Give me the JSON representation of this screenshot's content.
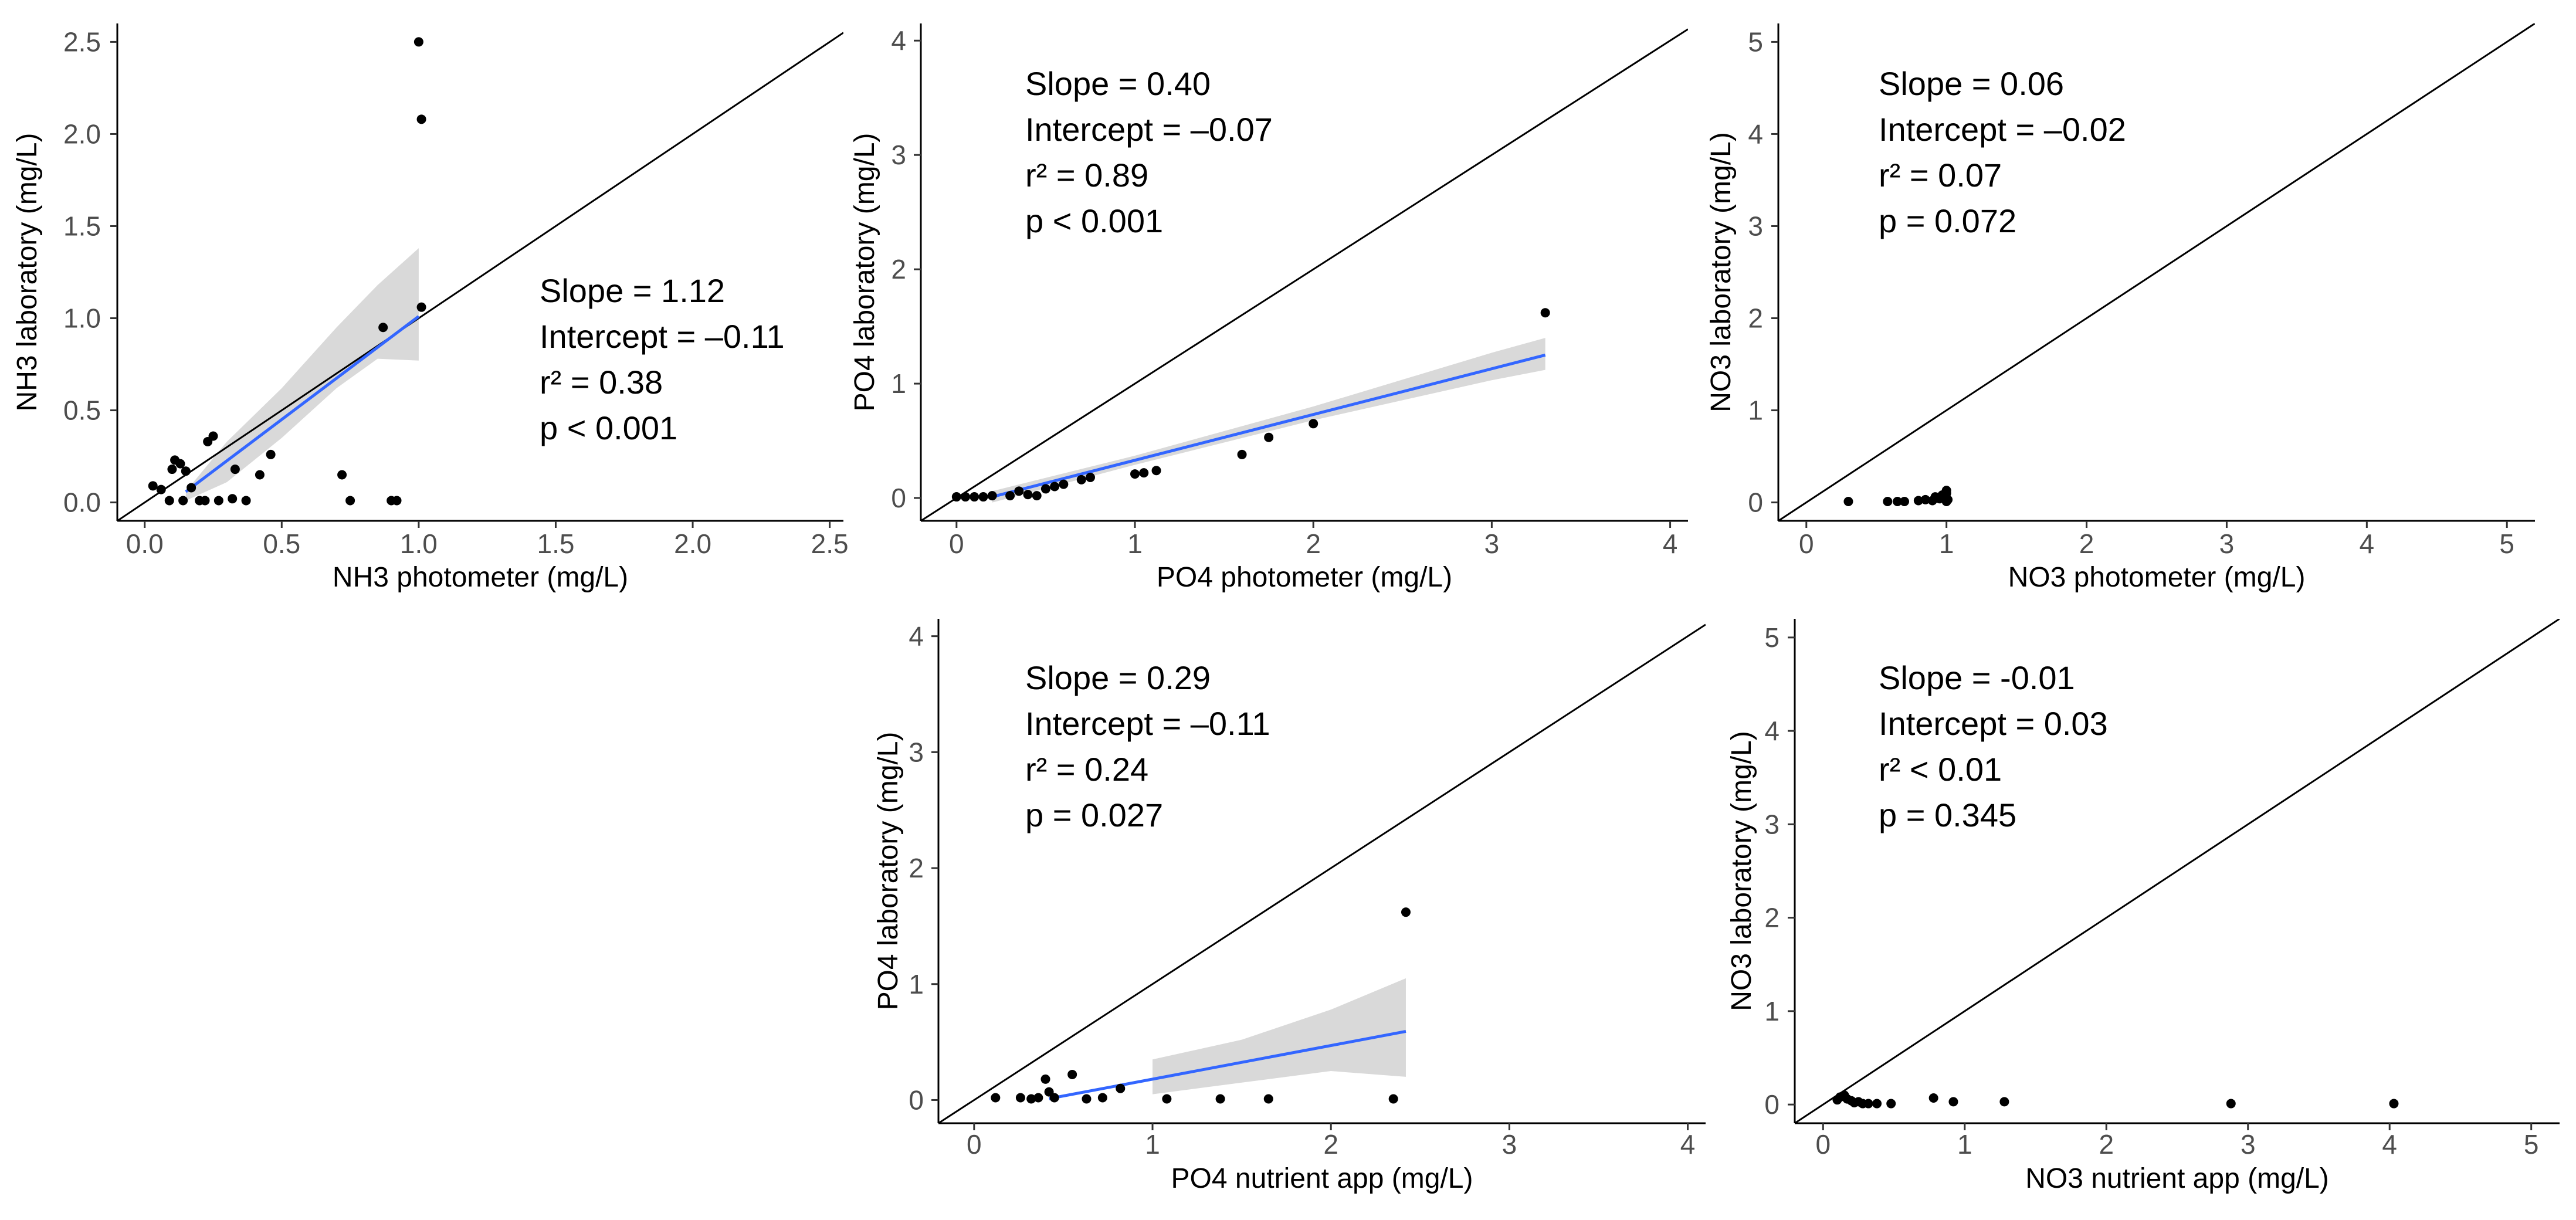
{
  "chart_data": [
    {
      "id": "p1",
      "type": "scatter",
      "xlabel": "NH3 photometer (mg/L)",
      "ylabel": "NH3 laboratory (mg/L)",
      "xlim": [
        -0.1,
        2.55
      ],
      "ylim": [
        -0.1,
        2.6
      ],
      "xticks": [
        0,
        0.5,
        1,
        1.5,
        2,
        2.5
      ],
      "xtick_labels": [
        "0.0",
        "0.5",
        "1.0",
        "1.5",
        "2.0",
        "2.5"
      ],
      "yticks": [
        0,
        0.5,
        1,
        1.5,
        2,
        2.5
      ],
      "ytick_labels": [
        "0.0",
        "0.5",
        "1.0",
        "1.5",
        "2.0",
        "2.5"
      ],
      "points": [
        [
          0.03,
          0.09
        ],
        [
          0.06,
          0.07
        ],
        [
          0.09,
          0.01
        ],
        [
          0.1,
          0.18
        ],
        [
          0.11,
          0.23
        ],
        [
          0.13,
          0.21
        ],
        [
          0.14,
          0.01
        ],
        [
          0.15,
          0.17
        ],
        [
          0.17,
          0.08
        ],
        [
          0.2,
          0.01
        ],
        [
          0.22,
          0.01
        ],
        [
          0.23,
          0.33
        ],
        [
          0.25,
          0.36
        ],
        [
          0.27,
          0.01
        ],
        [
          0.32,
          0.02
        ],
        [
          0.33,
          0.18
        ],
        [
          0.37,
          0.01
        ],
        [
          0.42,
          0.15
        ],
        [
          0.46,
          0.26
        ],
        [
          0.72,
          0.15
        ],
        [
          0.75,
          0.01
        ],
        [
          0.87,
          0.95
        ],
        [
          0.9,
          0.01
        ],
        [
          0.92,
          0.01
        ],
        [
          1.0,
          2.5
        ],
        [
          1.01,
          2.08
        ],
        [
          1.01,
          1.06
        ]
      ],
      "fit": {
        "x": [
          0.15,
          1.0
        ],
        "slope": 1.12,
        "intercept": -0.11
      },
      "ci": [
        [
          0.15,
          0.06,
          0.01
        ],
        [
          0.3,
          0.33,
          0.11
        ],
        [
          0.5,
          0.62,
          0.35
        ],
        [
          0.7,
          0.95,
          0.62
        ],
        [
          0.85,
          1.18,
          0.78
        ],
        [
          1.0,
          1.38,
          0.77
        ]
      ],
      "stats": [
        "Slope = 1.12",
        "Intercept = –0.11",
        "r² = 0.38",
        "p < 0.001"
      ]
    },
    {
      "id": "p2",
      "type": "scatter",
      "xlabel": "PO4 photometer (mg/L)",
      "ylabel": "PO4 laboratory (mg/L)",
      "xlim": [
        -0.2,
        4.1
      ],
      "ylim": [
        -0.2,
        4.15
      ],
      "xticks": [
        0,
        1,
        2,
        3,
        4
      ],
      "xtick_labels": [
        "0",
        "1",
        "2",
        "3",
        "4"
      ],
      "yticks": [
        0,
        1,
        2,
        3,
        4
      ],
      "ytick_labels": [
        "0",
        "1",
        "2",
        "3",
        "4"
      ],
      "points": [
        [
          0.0,
          0.01
        ],
        [
          0.05,
          0.01
        ],
        [
          0.1,
          0.01
        ],
        [
          0.15,
          0.01
        ],
        [
          0.2,
          0.02
        ],
        [
          0.3,
          0.02
        ],
        [
          0.35,
          0.06
        ],
        [
          0.4,
          0.03
        ],
        [
          0.45,
          0.02
        ],
        [
          0.5,
          0.08
        ],
        [
          0.55,
          0.1
        ],
        [
          0.6,
          0.12
        ],
        [
          0.7,
          0.16
        ],
        [
          0.75,
          0.18
        ],
        [
          1.0,
          0.21
        ],
        [
          1.05,
          0.22
        ],
        [
          1.12,
          0.24
        ],
        [
          1.6,
          0.38
        ],
        [
          1.75,
          0.53
        ],
        [
          2.0,
          0.65
        ],
        [
          3.3,
          1.62
        ]
      ],
      "fit": {
        "x": [
          0.2,
          3.3
        ],
        "slope": 0.4,
        "intercept": -0.07
      },
      "ci": [
        [
          0.2,
          0.06,
          -0.04
        ],
        [
          1.0,
          0.37,
          0.29
        ],
        [
          2.0,
          0.8,
          0.68
        ],
        [
          3.0,
          1.27,
          1.03
        ],
        [
          3.3,
          1.4,
          1.12
        ]
      ],
      "stats": [
        "Slope = 0.40",
        "Intercept = –0.07",
        "r² = 0.89",
        "p < 0.001"
      ]
    },
    {
      "id": "p3",
      "type": "scatter",
      "xlabel": "NO3 photometer (mg/L)",
      "ylabel": "NO3 laboratory (mg/L)",
      "xlim": [
        -0.2,
        5.2
      ],
      "ylim": [
        -0.2,
        5.2
      ],
      "xticks": [
        0,
        1,
        2,
        3,
        4,
        5
      ],
      "xtick_labels": [
        "0",
        "1",
        "2",
        "3",
        "4",
        "5"
      ],
      "yticks": [
        0,
        1,
        2,
        3,
        4,
        5
      ],
      "ytick_labels": [
        "0",
        "1",
        "2",
        "3",
        "4",
        "5"
      ],
      "points": [
        [
          0.3,
          0.01
        ],
        [
          0.58,
          0.01
        ],
        [
          0.65,
          0.01
        ],
        [
          0.7,
          0.01
        ],
        [
          0.8,
          0.02
        ],
        [
          0.85,
          0.03
        ],
        [
          0.9,
          0.02
        ],
        [
          0.92,
          0.06
        ],
        [
          0.95,
          0.04
        ],
        [
          0.97,
          0.08
        ],
        [
          1.0,
          0.01
        ],
        [
          1.0,
          0.05
        ],
        [
          1.0,
          0.1
        ],
        [
          1.0,
          0.13
        ],
        [
          1.01,
          0.03
        ]
      ],
      "fit": null,
      "ci": null,
      "stats": [
        "Slope = 0.06",
        "Intercept  = –0.02",
        "r² = 0.07",
        "p = 0.072"
      ]
    },
    {
      "id": "p4",
      "type": "scatter",
      "xlabel": "PO4 nutrient app (mg/L)",
      "ylabel": "PO4 laboratory (mg/L)",
      "xlim": [
        -0.2,
        4.1
      ],
      "ylim": [
        -0.2,
        4.15
      ],
      "xticks": [
        0,
        1,
        2,
        3,
        4
      ],
      "xtick_labels": [
        "0",
        "1",
        "2",
        "3",
        "4"
      ],
      "yticks": [
        0,
        1,
        2,
        3,
        4
      ],
      "ytick_labels": [
        "0",
        "1",
        "2",
        "3",
        "4"
      ],
      "points": [
        [
          0.12,
          0.02
        ],
        [
          0.26,
          0.02
        ],
        [
          0.32,
          0.01
        ],
        [
          0.36,
          0.02
        ],
        [
          0.4,
          0.18
        ],
        [
          0.42,
          0.07
        ],
        [
          0.45,
          0.02
        ],
        [
          0.55,
          0.22
        ],
        [
          0.63,
          0.01
        ],
        [
          0.72,
          0.02
        ],
        [
          0.82,
          0.1
        ],
        [
          1.08,
          0.01
        ],
        [
          1.38,
          0.01
        ],
        [
          1.65,
          0.01
        ],
        [
          2.35,
          0.01
        ],
        [
          2.42,
          1.62
        ]
      ],
      "fit": {
        "x": [
          0.42,
          2.42
        ],
        "slope": 0.29,
        "intercept": -0.11
      },
      "ci": [
        [
          1.0,
          0.35,
          0.05
        ],
        [
          1.5,
          0.52,
          0.15
        ],
        [
          2.0,
          0.78,
          0.25
        ],
        [
          2.42,
          1.05,
          0.2
        ]
      ],
      "stats": [
        "Slope = 0.29",
        "Intercept = –0.11",
        "r² = 0.24",
        "p = 0.027"
      ]
    },
    {
      "id": "p5",
      "type": "scatter",
      "xlabel": "NO3 nutrient app (mg/L)",
      "ylabel": "NO3 laboratory (mg/L)",
      "xlim": [
        -0.2,
        5.2
      ],
      "ylim": [
        -0.2,
        5.2
      ],
      "xticks": [
        0,
        1,
        2,
        3,
        4,
        5
      ],
      "xtick_labels": [
        "0",
        "1",
        "2",
        "3",
        "4",
        "5"
      ],
      "yticks": [
        0,
        1,
        2,
        3,
        4,
        5
      ],
      "ytick_labels": [
        "0",
        "1",
        "2",
        "3",
        "4",
        "5"
      ],
      "points": [
        [
          0.1,
          0.05
        ],
        [
          0.12,
          0.08
        ],
        [
          0.15,
          0.1
        ],
        [
          0.17,
          0.06
        ],
        [
          0.2,
          0.04
        ],
        [
          0.22,
          0.02
        ],
        [
          0.25,
          0.03
        ],
        [
          0.28,
          0.01
        ],
        [
          0.32,
          0.01
        ],
        [
          0.38,
          0.01
        ],
        [
          0.48,
          0.01
        ],
        [
          0.78,
          0.07
        ],
        [
          0.92,
          0.03
        ],
        [
          1.28,
          0.03
        ],
        [
          2.88,
          0.01
        ],
        [
          4.03,
          0.01
        ]
      ],
      "fit": null,
      "ci": null,
      "stats": [
        "Slope = -0.01",
        "Intercept  = 0.03",
        "r² < 0.01",
        "p = 0.345"
      ]
    }
  ]
}
